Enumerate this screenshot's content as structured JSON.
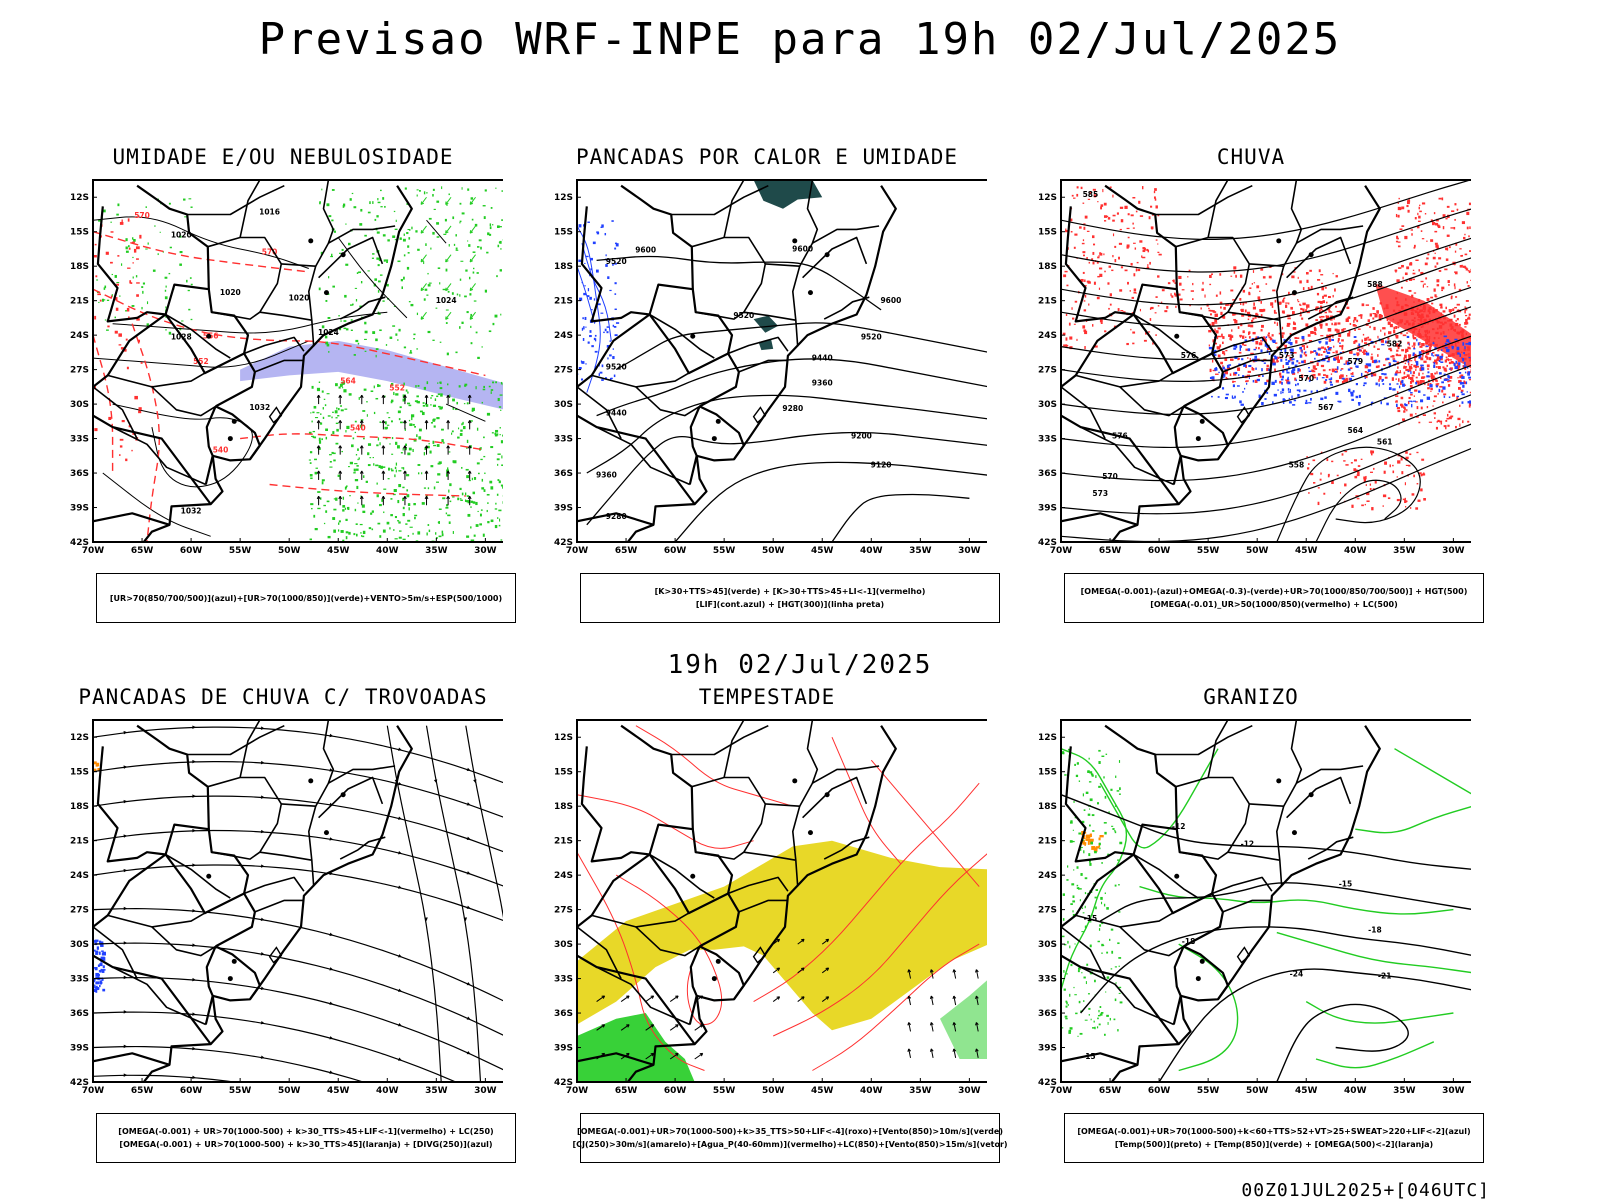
{
  "header": {
    "title": "Previsao WRF-INPE  para 19h 02/Jul/2025"
  },
  "middle_timestamp": "19h 02/Jul/2025",
  "footer": {
    "run_info": "00Z01JUL2025+[046UTC]"
  },
  "axes": {
    "lat_labels": [
      "12S",
      "15S",
      "18S",
      "21S",
      "24S",
      "27S",
      "30S",
      "33S",
      "36S",
      "39S",
      "42S"
    ],
    "lon_labels": [
      "70W",
      "65W",
      "60W",
      "55W",
      "50W",
      "45W",
      "40W",
      "35W",
      "30W"
    ]
  },
  "colors": {
    "red": "#ff3030",
    "green": "#22cc22",
    "blue": "#2040ff",
    "lavender": "#a8a8f0",
    "yellow": "#e8d828",
    "teal": "#1f4a4a",
    "black": "#000000",
    "orange": "#ff8c00"
  },
  "panels": [
    {
      "id": "umidade",
      "title": "UMIDADE E/OU NEBULOSIDADE",
      "legend": [
        "[UR>70(850/700/500)](azul)+[UR>70(1000/850)](verde)+VENTO>5m/s+ESP(500/1000)"
      ],
      "contour_labels": [
        "1016",
        "1020",
        "1020",
        "1024",
        "1028",
        "1032",
        "1032",
        "552",
        "556",
        "540",
        "564",
        "570",
        "1020",
        "1024"
      ]
    },
    {
      "id": "pancadas",
      "title": "PANCADAS POR CALOR E UMIDADE",
      "legend": [
        "[K>30+TTS>45](verde) + [K>30+TTS>45+LI<-1](vermelho)",
        "[LIF](cont.azul) + [HGT(300)](linha preta)"
      ],
      "contour_labels": [
        "9600",
        "9600",
        "9520",
        "9520",
        "9440",
        "9360",
        "9280",
        "9200",
        "9120",
        "9520",
        "9440",
        "9360",
        "9280",
        "9600"
      ]
    },
    {
      "id": "chuva",
      "title": "CHUVA",
      "legend": [
        "[OMEGA(-0.001)-(azul)+OMEGA(-0.3)-(verde)+UR>70(1000/850/700/500)] + HGT(500)",
        "[OMEGA(-0.01)_UR>50(1000/850)(vermelho) + LC(500)"
      ],
      "contour_labels": [
        "585",
        "576",
        "573",
        "570",
        "567",
        "564",
        "561",
        "558",
        "579",
        "582",
        "588"
      ]
    },
    {
      "id": "trovoadas",
      "title": "PANCADAS DE CHUVA C/ TROVOADAS",
      "legend": [
        "[OMEGA(-0.001) + UR>70(1000-500) + k>30_TTS>45+LIF<-1](vermelho) + LC(250)",
        "[OMEGA(-0.001) + UR>70(1000-500) + k>30_TTS>45](laranja) + [DIVG(250)](azul)"
      ]
    },
    {
      "id": "tempestade",
      "title": "TEMPESTADE",
      "legend": [
        "[OMEGA(-0.001)+UR>70(1000-500)+k>35_TTS>50+LIF<-4](roxo)+[Vento(850)>10m/s](verde)",
        "[CJ(250)>30m/s](amarelo)+[Agua_P(40-60mm)](vermelho)+LC(850)+[Vento(850)>15m/s](vetor)"
      ]
    },
    {
      "id": "granizo",
      "title": "GRANIZO",
      "legend": [
        "[OMEGA(-0.001)+UR>70(1000-500)+k<60+TTS>52+VT>25+SWEAT>220+LIF<-2](azul)",
        "[Temp(500)](preto) + [Temp(850)](verde) + [OMEGA(500)<-2](laranja)"
      ],
      "contour_labels": [
        "-12",
        "-15",
        "-18",
        "-21",
        "-24",
        "-15",
        "-12",
        "-18",
        "15"
      ]
    }
  ]
}
